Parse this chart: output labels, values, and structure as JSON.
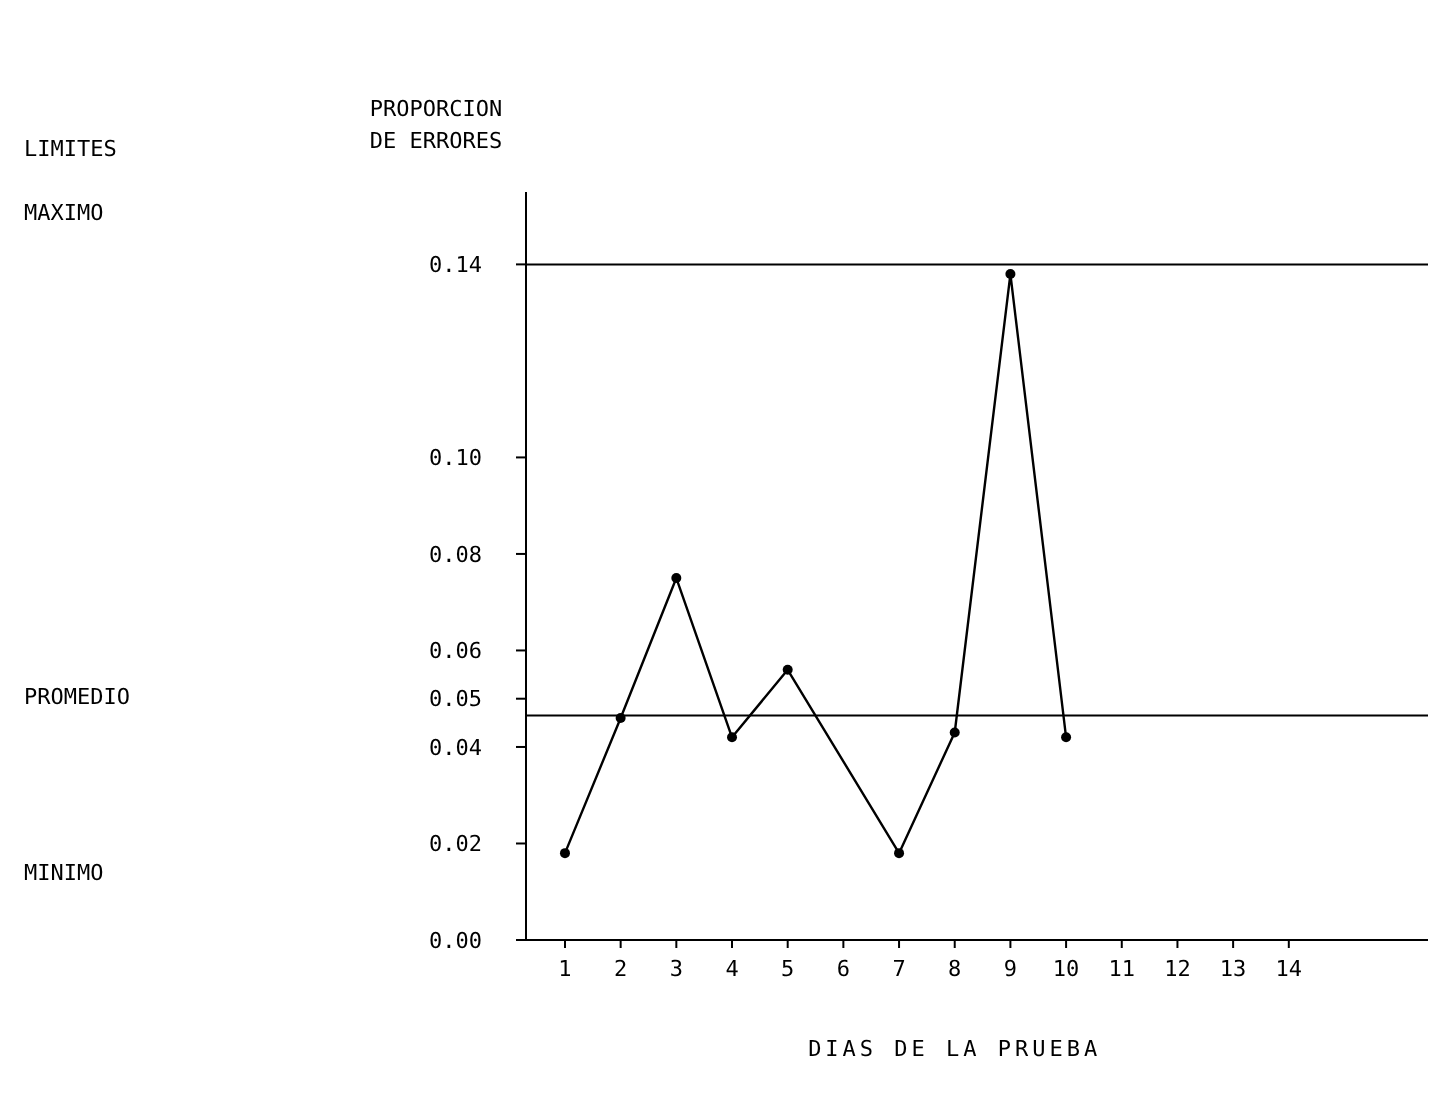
{
  "chart_data": {
    "type": "line",
    "ylabel": "PROPORCION DE ERRORES",
    "xlabel": "DIAS DE LA PRUEBA",
    "x": [
      1,
      2,
      3,
      4,
      5,
      7,
      8,
      9,
      10
    ],
    "series": [
      {
        "color": "#000000",
        "values": [
          0.018,
          0.046,
          0.075,
          0.042,
          0.056,
          0.018,
          0.043,
          0.138,
          0.042
        ]
      }
    ],
    "xlim": [
      0.3,
      16.5
    ],
    "xticks": [
      1,
      2,
      3,
      4,
      5,
      6,
      7,
      8,
      9,
      10,
      11,
      12,
      13,
      14
    ],
    "ylim": [
      0,
      0.155
    ],
    "yticks": [
      {
        "value": 0,
        "label": "0.00"
      },
      {
        "value": 0.02,
        "label": "0.02"
      },
      {
        "value": 0.04,
        "label": "0.04"
      },
      {
        "value": 0.05,
        "label": "0.05"
      },
      {
        "value": 0.06,
        "label": "0.06"
      },
      {
        "value": 0.08,
        "label": "0.08"
      },
      {
        "value": 0.1,
        "label": "0.10"
      },
      {
        "value": 0.14,
        "label": "0.14"
      }
    ],
    "ref_lines": [
      {
        "axis": "y",
        "value": 0.14
      },
      {
        "axis": "y",
        "value": 0.0465
      }
    ],
    "annotations": [
      "LIMITES",
      "MAXIMO",
      "PROMEDIO",
      "MINIMO"
    ],
    "grid": false,
    "marker": "circle",
    "line_style": "solid"
  }
}
